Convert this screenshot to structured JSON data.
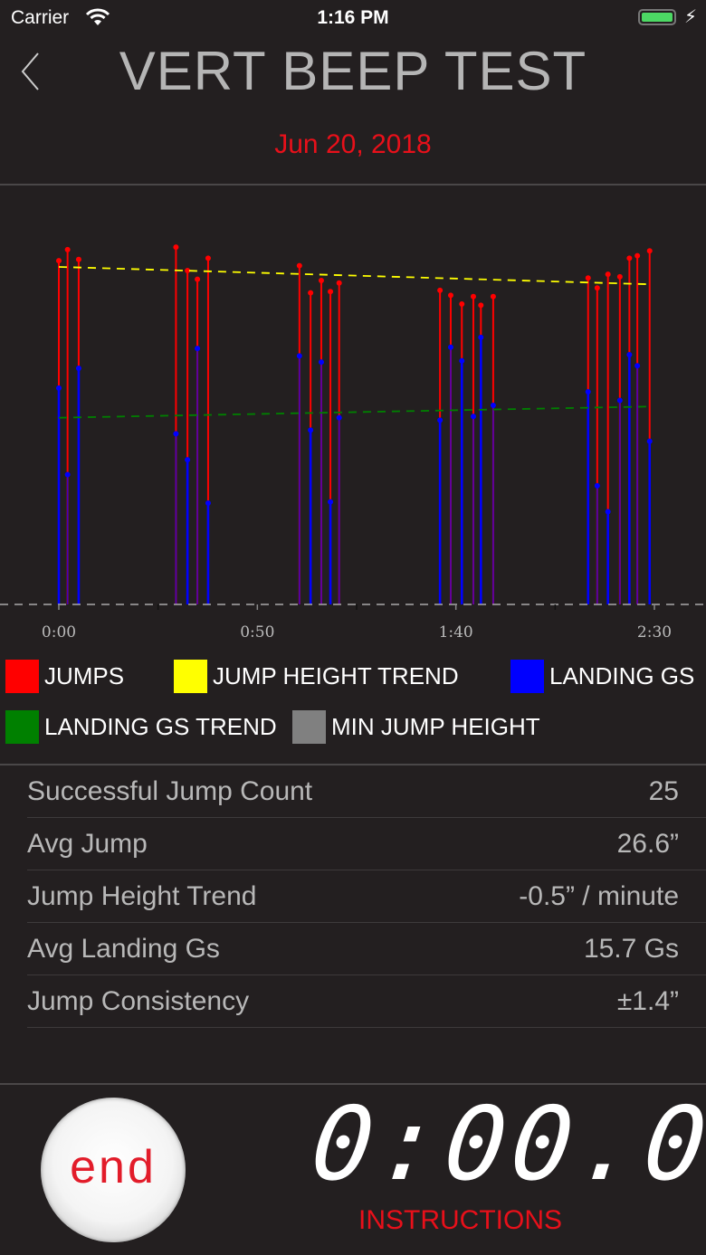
{
  "status_bar": {
    "carrier": "Carrier",
    "time": "1:16 PM",
    "battery_level": 1.0,
    "charging": true
  },
  "header": {
    "title": "VERT BEEP TEST",
    "date": "Jun 20, 2018",
    "back_icon": "chevron-left-icon"
  },
  "colors": {
    "jumps": "#ff0000",
    "jump_height_trend": "#ffff00",
    "landing_gs": "#0000ff",
    "landing_gs_trend": "#008000",
    "min_jump_height": "#808080",
    "accent": "#e8101a"
  },
  "chart_data": {
    "type": "line",
    "x_tick_labels": [
      "0:00",
      "0:50",
      "1:40",
      "2:30"
    ],
    "xlim_seconds": [
      0,
      150
    ],
    "ylim": [
      0,
      29.2
    ],
    "grid": false,
    "legend_position": "bottom",
    "series": [
      {
        "name": "JUMPS",
        "kind": "stem",
        "x": [
          0,
          2.2,
          5.0,
          29.5,
          32.4,
          34.9,
          37.6,
          60.6,
          63.4,
          66.1,
          68.4,
          70.6,
          96.0,
          98.7,
          101.5,
          104.4,
          106.3,
          109.4,
          133.3,
          135.6,
          138.3,
          141.3,
          143.7,
          145.7,
          148.8
        ],
        "values": [
          27.8,
          28.7,
          27.9,
          28.9,
          27.0,
          26.3,
          28.0,
          27.4,
          25.2,
          26.2,
          25.3,
          26.0,
          25.4,
          25.0,
          24.3,
          24.9,
          24.2,
          24.9,
          26.4,
          25.6,
          26.7,
          26.5,
          28.0,
          28.2,
          28.6
        ]
      },
      {
        "name": "LANDING GS",
        "kind": "stem",
        "x": [
          0,
          2.2,
          5.0,
          29.5,
          32.4,
          34.9,
          37.6,
          60.6,
          63.4,
          66.1,
          68.4,
          70.6,
          96.0,
          98.7,
          101.5,
          104.4,
          106.3,
          109.4,
          133.3,
          135.6,
          138.3,
          141.3,
          143.7,
          145.7,
          148.8
        ],
        "values": [
          17.5,
          10.5,
          19.1,
          13.8,
          11.7,
          20.7,
          8.2,
          20.1,
          14.1,
          19.6,
          8.3,
          15.1,
          14.9,
          20.8,
          19.7,
          15.2,
          21.6,
          16.1,
          17.2,
          9.6,
          7.5,
          16.5,
          20.2,
          19.3,
          13.2
        ]
      },
      {
        "name": "JUMP HEIGHT TREND",
        "kind": "dashed-line",
        "x": [
          0,
          148
        ],
        "values": [
          27.3,
          25.9
        ]
      },
      {
        "name": "LANDING GS TREND",
        "kind": "dashed-line",
        "x": [
          0,
          148
        ],
        "values": [
          15.1,
          16.0
        ]
      },
      {
        "name": "MIN JUMP HEIGHT",
        "kind": "dashed-line",
        "x": [
          0,
          150
        ],
        "values": [
          0,
          0
        ]
      }
    ]
  },
  "legend": [
    {
      "label": "JUMPS",
      "color": "#ff0000"
    },
    {
      "label": "JUMP HEIGHT TREND",
      "color": "#ffff00"
    },
    {
      "label": "LANDING GS",
      "color": "#0000ff"
    },
    {
      "label": "LANDING GS TREND",
      "color": "#008000"
    },
    {
      "label": "MIN JUMP HEIGHT",
      "color": "#808080"
    }
  ],
  "stats": [
    {
      "label": "Successful Jump Count",
      "value": "25"
    },
    {
      "label": "Avg Jump",
      "value": "26.6”"
    },
    {
      "label": "Jump Height Trend",
      "value": "-0.5” / minute"
    },
    {
      "label": "Avg Landing Gs",
      "value": "15.7 Gs"
    },
    {
      "label": "Jump Consistency",
      "value": "±1.4”"
    }
  ],
  "controls": {
    "end_label": "end",
    "timer": "0:00.0",
    "instructions_label": "INSTRUCTIONS"
  }
}
